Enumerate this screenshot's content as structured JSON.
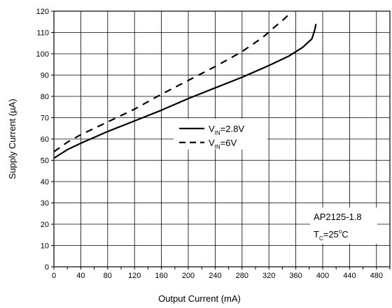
{
  "chart_data": {
    "type": "line",
    "title": "",
    "xlabel": "Output Current (mA)",
    "ylabel": "Supply Current (µA)",
    "xlim": [
      0,
      500
    ],
    "ylim": [
      0,
      120
    ],
    "xticks": [
      0,
      40,
      80,
      120,
      160,
      200,
      240,
      280,
      320,
      360,
      400,
      440,
      480
    ],
    "yticks": [
      0,
      10,
      20,
      30,
      40,
      50,
      60,
      70,
      80,
      90,
      100,
      110,
      120
    ],
    "grid": true,
    "legend_position": "center",
    "series": [
      {
        "name_main": "V",
        "name_sub": "IN",
        "name_rest": "=2.8V",
        "line_style": "solid",
        "color": "#000000",
        "x": [
          0,
          20,
          40,
          80,
          120,
          160,
          200,
          240,
          280,
          320,
          350,
          370,
          384,
          388,
          390
        ],
        "y": [
          51,
          55,
          58,
          63.5,
          68.5,
          73.5,
          79,
          84,
          89,
          94.5,
          99,
          103,
          107,
          111,
          114
        ]
      },
      {
        "name_main": "V",
        "name_sub": "IN",
        "name_rest": "=6V",
        "line_style": "dashed",
        "color": "#000000",
        "x": [
          0,
          20,
          40,
          80,
          120,
          160,
          200,
          240,
          280,
          310,
          330,
          345,
          352
        ],
        "y": [
          54,
          58.5,
          62,
          68,
          74,
          81,
          87.5,
          94,
          101,
          107.5,
          113,
          117,
          119.5
        ]
      }
    ],
    "annotation": {
      "line1": "AP2125-1.8",
      "line2_main": "T",
      "line2_sub": "C",
      "line2_rest": "=25",
      "line2_sup": "o",
      "line2_unit": "C"
    }
  }
}
